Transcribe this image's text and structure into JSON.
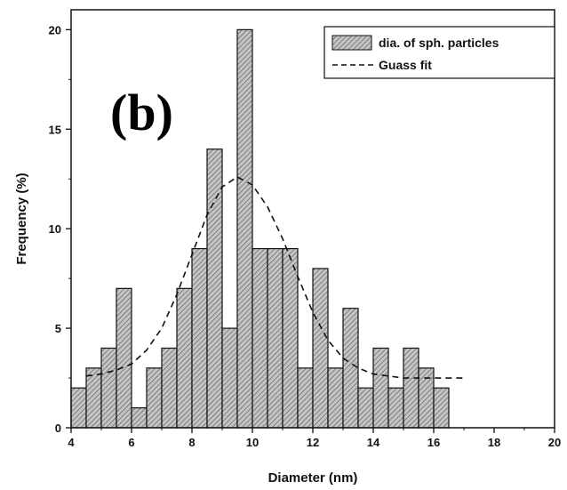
{
  "chart_data": {
    "type": "bar",
    "panel_label": "(b)",
    "xlabel": "Diameter (nm)",
    "ylabel": "Frequency (%)",
    "xlim": [
      4,
      20
    ],
    "ylim": [
      0,
      21
    ],
    "x_ticks": [
      4,
      6,
      8,
      10,
      12,
      14,
      16,
      18,
      20
    ],
    "y_ticks": [
      0,
      5,
      10,
      15,
      20
    ],
    "bin_width": 0.5,
    "series": [
      {
        "name": "dia. of sph. particles",
        "kind": "histogram",
        "bin_starts": [
          4.0,
          4.5,
          5.0,
          5.5,
          6.0,
          6.5,
          7.0,
          7.5,
          8.0,
          8.5,
          9.0,
          9.5,
          10.0,
          10.5,
          11.0,
          11.5,
          12.0,
          12.5,
          13.0,
          13.5,
          14.0,
          14.5,
          15.0,
          15.5,
          16.0
        ],
        "values": [
          2,
          3,
          4,
          7,
          1,
          3,
          4,
          7,
          9,
          14,
          5,
          20,
          9,
          9,
          9,
          3,
          8,
          3,
          6,
          2,
          4,
          2,
          4,
          3,
          2
        ]
      },
      {
        "name": "Guass fit",
        "kind": "line",
        "style": "dashed",
        "x": [
          4.5,
          5.0,
          5.5,
          6.0,
          6.5,
          7.0,
          7.5,
          8.0,
          8.5,
          9.0,
          9.5,
          10.0,
          10.5,
          11.0,
          11.5,
          12.0,
          12.5,
          13.0,
          13.5,
          14.0,
          14.5,
          15.0,
          15.5,
          16.0,
          16.5,
          17.0
        ],
        "values": [
          2.6,
          2.7,
          2.9,
          3.2,
          3.9,
          5.0,
          6.7,
          8.7,
          10.7,
          12.1,
          12.6,
          12.2,
          11.1,
          9.5,
          7.6,
          5.8,
          4.4,
          3.5,
          3.0,
          2.7,
          2.6,
          2.5,
          2.5,
          2.5,
          2.5,
          2.5
        ]
      }
    ],
    "legend": {
      "position": "top-right",
      "entries": [
        "dia. of sph. particles",
        "Guass fit"
      ]
    },
    "colors": {
      "bar_fill": "#c4c4c4",
      "hatch": "#5a5a5a",
      "outline": "#111111",
      "fit_line": "#111111"
    }
  }
}
